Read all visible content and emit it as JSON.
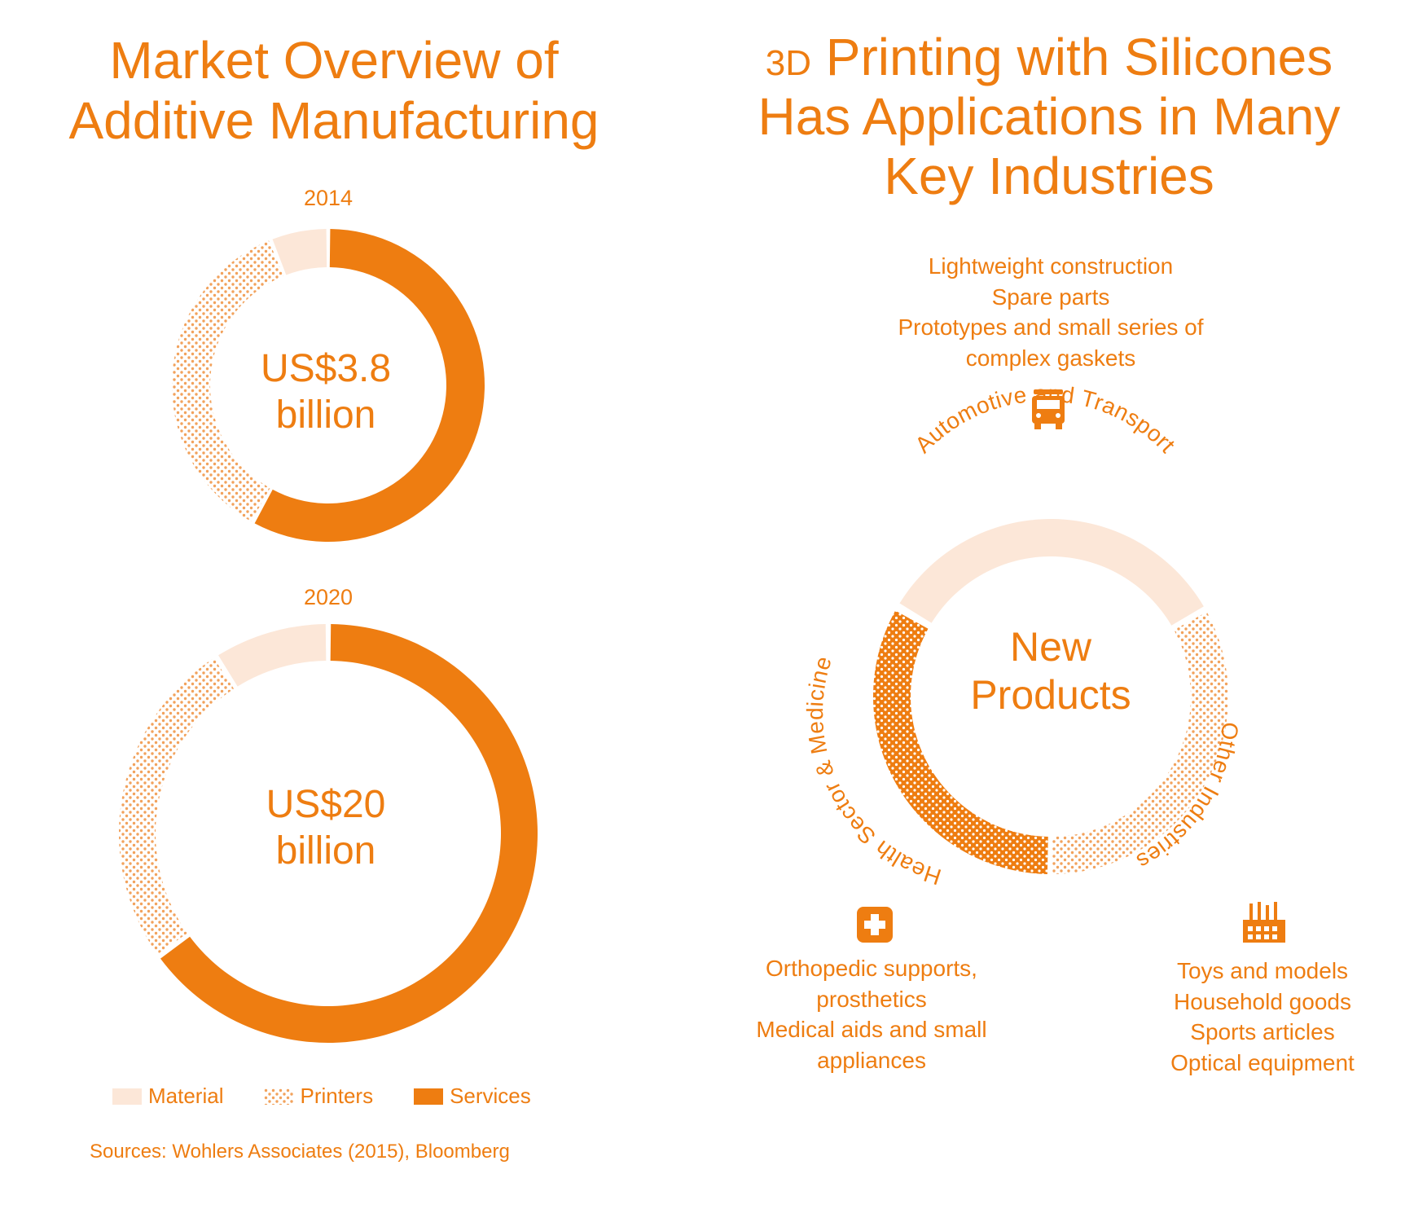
{
  "left": {
    "title_line1": "Market Overview of",
    "title_line2": "Additive Manufacturing"
  },
  "right": {
    "title_line1_small": "3D",
    "title_line1_rest": " Printing with Silicones",
    "title_line2": "Has Applications in Many",
    "title_line3": "Key Industries",
    "center_line1": "New",
    "center_line2": "Products",
    "segment_labels": {
      "automotive": "Automotive and Transport",
      "other": "Other Industries",
      "health": "Health Sector & Medicine"
    },
    "automotive_items": [
      "Lightweight construction",
      "Spare parts",
      "Prototypes and small series of",
      "complex gaskets"
    ],
    "health_items": [
      "Orthopedic supports,",
      "prosthetics",
      "Medical aids and small",
      "appliances"
    ],
    "other_items": [
      "Toys and models",
      "Household goods",
      "Sports articles",
      "Optical equipment"
    ],
    "icons": [
      "truck-icon",
      "medical-cross-icon",
      "factory-icon"
    ]
  },
  "legend": {
    "material": "Material",
    "printers": "Printers",
    "services": "Services"
  },
  "sources": "Sources: Wohlers Associates (2015), Bloomberg",
  "colors": {
    "accent": "#ee7d11",
    "material": "#fce7d8",
    "printers_dot": "#f2a25c",
    "services": "#ee7d11"
  },
  "chart_data": [
    {
      "type": "donut",
      "title": "2014",
      "center_value": "US$3.8",
      "center_unit": "billion",
      "categories": [
        "Material",
        "Printers",
        "Services"
      ],
      "values": [
        0.06,
        0.36,
        0.58
      ]
    },
    {
      "type": "donut",
      "title": "2020",
      "center_value": "US$20",
      "center_unit": "billion",
      "categories": [
        "Material",
        "Printers",
        "Services"
      ],
      "values": [
        0.09,
        0.26,
        0.65
      ]
    },
    {
      "type": "donut",
      "title": "",
      "categories": [
        "Automotive and Transport",
        "Other Industries",
        "Health Sector & Medicine"
      ],
      "values": [
        0.3333,
        0.3333,
        0.3334
      ]
    }
  ]
}
